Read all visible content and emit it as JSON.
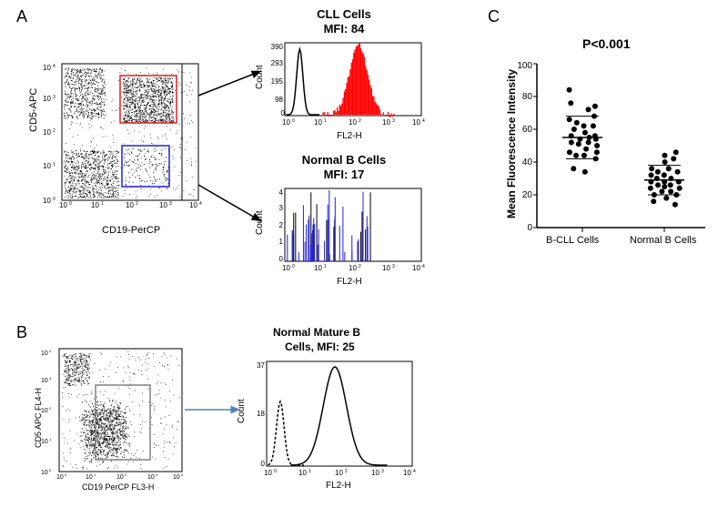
{
  "panelA": {
    "label": "A",
    "scatter": {
      "xlabel": "CD19-PerCP",
      "ylabel": "CD5-APC",
      "xlim": [
        0,
        4
      ],
      "ylim": [
        0,
        4
      ],
      "ticks": [
        "10^0",
        "10^1",
        "10^2",
        "10^3",
        "10^4"
      ],
      "point_color": "#000000",
      "gate1_color": "#d82020",
      "gate2_color": "#2020d8",
      "background": "#ffffff",
      "n_points": 2600
    },
    "hist1": {
      "title": "CLL Cells",
      "mfi_label": "MFI: 84",
      "xlabel": "FL2-H",
      "ylabel": "Count",
      "ylim": [
        0,
        390
      ],
      "yticks": [
        98,
        195,
        293,
        390
      ],
      "curve1_color": "#000000",
      "curve2_color": "#ff0000"
    },
    "hist2": {
      "title": "Normal B Cells",
      "mfi_label": "MFI: 17",
      "xlabel": "FL2-H",
      "ylabel": "Count",
      "ylim": [
        0,
        4
      ],
      "yticks": [
        1,
        2,
        3,
        4
      ],
      "curve_color": "#2020d8"
    }
  },
  "panelB": {
    "label": "B",
    "scatter": {
      "xlabel": "CD19 PerCP FL3-H",
      "ylabel": "CD5 APC FL4-H",
      "xlim": [
        0,
        4
      ],
      "ylim": [
        0,
        4
      ],
      "ticks": [
        "10^0",
        "10^1",
        "10^2",
        "10^3",
        "10^4"
      ],
      "gate_color": "#808080",
      "point_color": "#000000"
    },
    "hist": {
      "title": "Normal Mature B",
      "mfi_label": "Cells, MFI: 25",
      "xlabel": "FL2-H",
      "ylabel": "Count",
      "ylim": [
        0,
        37
      ],
      "yticks": [
        18,
        37
      ],
      "curve_color": "#000000"
    }
  },
  "panelC": {
    "label": "C",
    "pval": "P<0.001",
    "ylabel": "Mean Fluorescence Intensity",
    "xticks": [
      "B-CLL Cells",
      "Normal B Cells"
    ],
    "ylim": [
      0,
      100
    ],
    "yticks": [
      0,
      20,
      40,
      60,
      80,
      100
    ],
    "group1": {
      "values": [
        34,
        36,
        42,
        44,
        44,
        46,
        46,
        48,
        50,
        51,
        52,
        52,
        54,
        54,
        55,
        56,
        56,
        58,
        60,
        62,
        62,
        64,
        66,
        68,
        72,
        74,
        76,
        84
      ],
      "mean": 55,
      "sd": 13
    },
    "group2": {
      "values": [
        14,
        16,
        18,
        20,
        20,
        22,
        22,
        24,
        24,
        25,
        26,
        26,
        28,
        28,
        28,
        30,
        30,
        32,
        32,
        34,
        34,
        36,
        36,
        40,
        42,
        44,
        46
      ],
      "mean": 29,
      "sd": 9
    },
    "point_color": "#000000",
    "bar_color": "#000000"
  }
}
